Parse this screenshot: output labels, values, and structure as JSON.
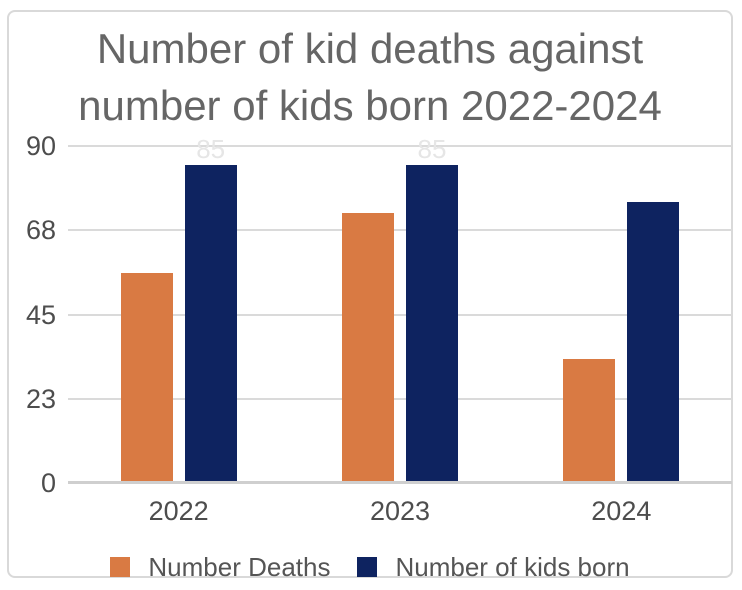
{
  "chart_data": {
    "type": "bar",
    "title": "Number of kid deaths against number of kids born 2022-2024",
    "categories": [
      "2022",
      "2023",
      "2024"
    ],
    "series": [
      {
        "name": "Number Deaths",
        "color": "#D97A43",
        "values": [
          56,
          72,
          33
        ]
      },
      {
        "name": "Number of kids born",
        "color": "#0E2360",
        "values": [
          85,
          85,
          75
        ]
      }
    ],
    "xlabel": "",
    "ylabel": "",
    "ylim": [
      0,
      90
    ],
    "yticks": [
      {
        "value": 0,
        "label": "0"
      },
      {
        "value": 22.5,
        "label": "23"
      },
      {
        "value": 45,
        "label": "45"
      },
      {
        "value": 67.5,
        "label": "68"
      },
      {
        "value": 90,
        "label": "90"
      }
    ],
    "grid": true,
    "legend_position": "bottom",
    "data_labels": [
      {
        "series_index": 1,
        "category_index": 0,
        "text": "85"
      },
      {
        "series_index": 1,
        "category_index": 1,
        "text": "85"
      }
    ]
  },
  "colors": {
    "grid": "#DADADA",
    "axis_line": "#CFCFCF",
    "title_text": "#666666",
    "tick_text": "#4D4D4D",
    "legend_text": "#555555",
    "card_border": "#D9D9D9",
    "background": "#FFFFFF",
    "data_label_text": "#E6E6E6"
  }
}
